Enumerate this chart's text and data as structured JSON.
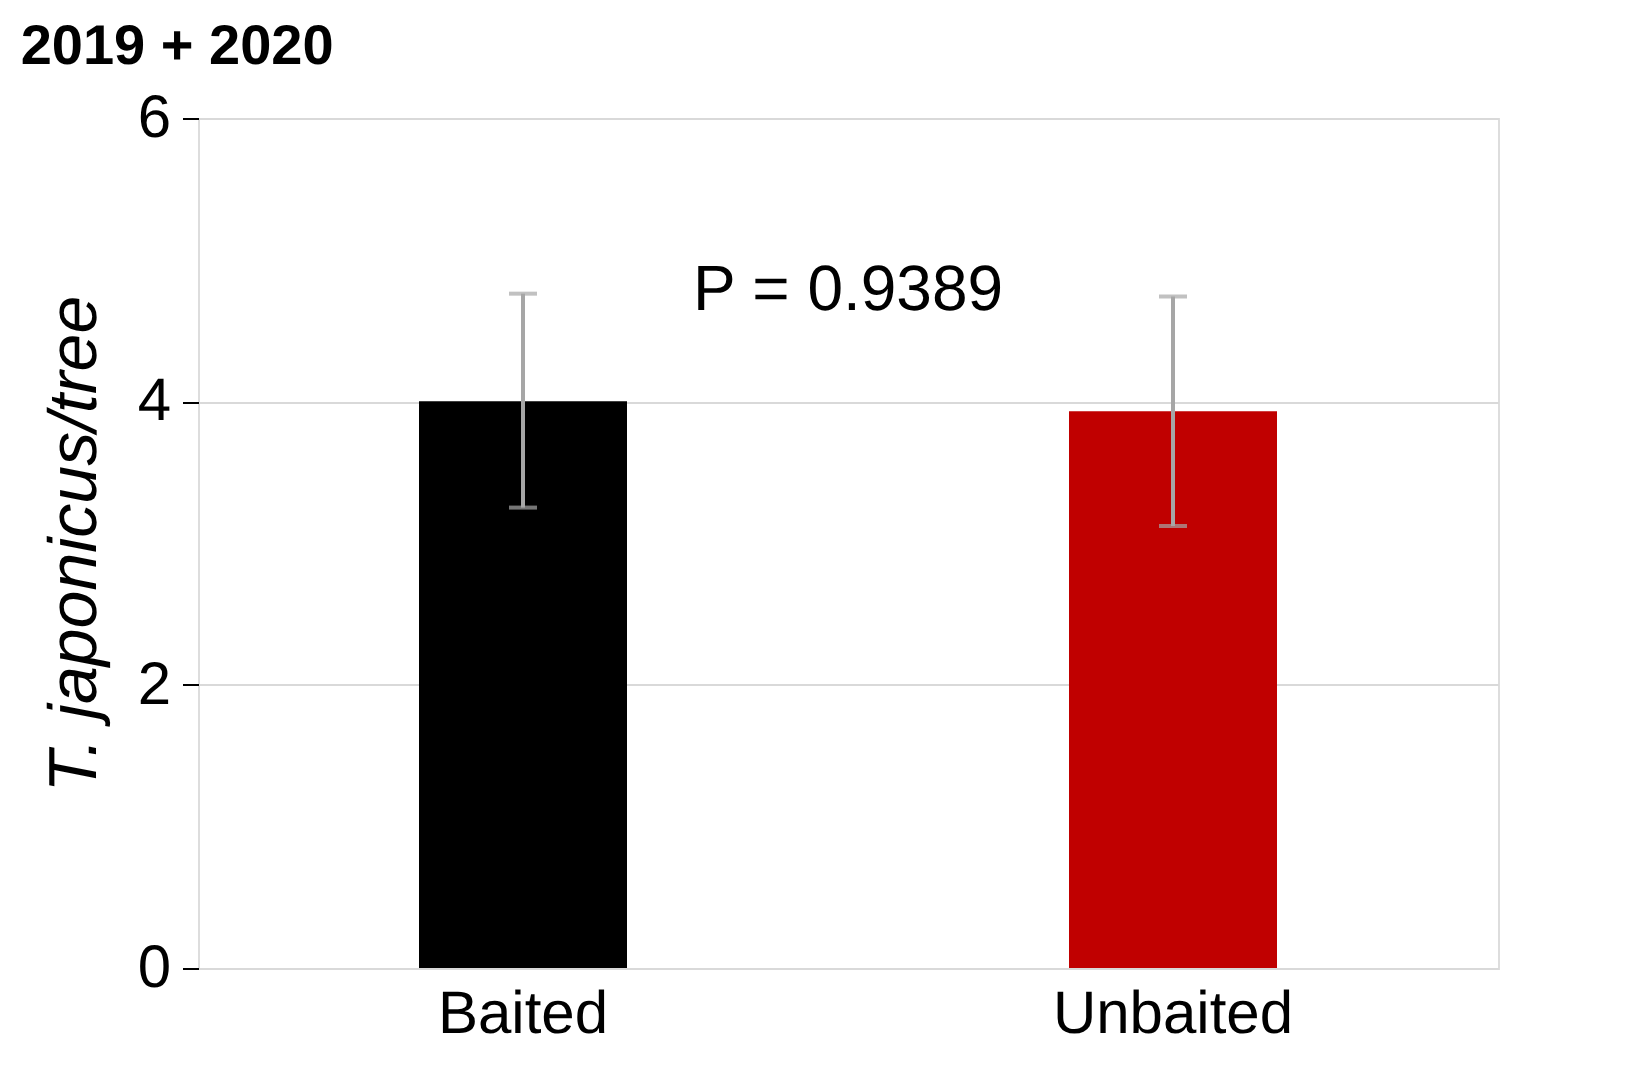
{
  "chart_data": {
    "type": "bar",
    "title": "2019 + 2020",
    "ylabel": "T. japonicus/tree",
    "categories": [
      "Baited",
      "Unbaited"
    ],
    "values": [
      4.0,
      3.93
    ],
    "colors": [
      "#000000",
      "#c00000"
    ],
    "errors": [
      [
        3.25,
        4.76
      ],
      [
        3.12,
        4.74
      ]
    ],
    "ylim": [
      0,
      6
    ],
    "yticks": [
      0,
      2,
      4,
      6
    ],
    "grid": "y",
    "annotations": [
      "P = 0.9389"
    ]
  }
}
